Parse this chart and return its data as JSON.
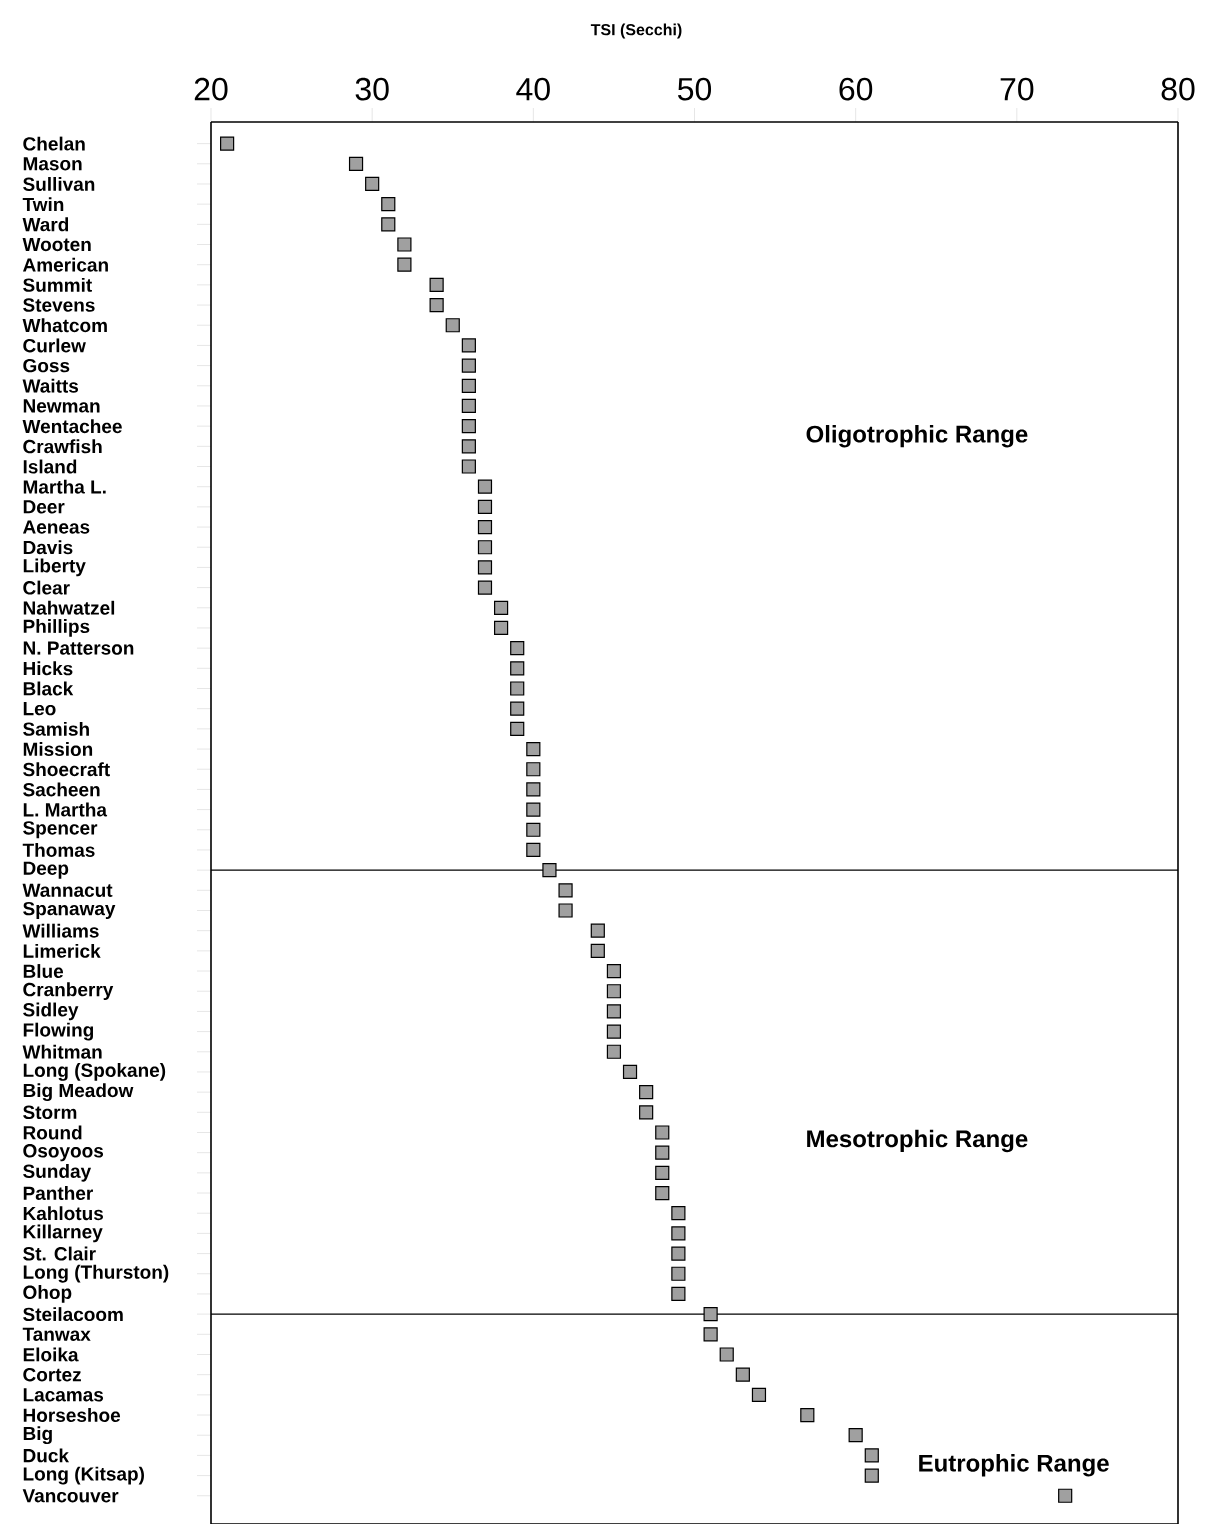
{
  "chart_data": {
    "type": "scatter",
    "xlabel": "TSI (Secchi)",
    "categories": [
      "Chelan",
      "Mason",
      "Sullivan",
      "Twin",
      "Ward",
      "Wooten",
      "American",
      "Summit",
      "Stevens",
      "Whatcom",
      "Curlew",
      "Goss",
      "Waitts",
      "Newman",
      "Wentachee",
      "Crawfish",
      "Island",
      "Martha L.",
      "Deer",
      "Aeneas",
      "Davis",
      "Liberty",
      "Clear",
      "Nahwatzel",
      "Phillips",
      "N. Patterson",
      "Hicks",
      "Black",
      "Leo",
      "Samish",
      "Mission",
      "Shoecraft",
      "Sacheen",
      "L. Martha",
      "Spencer",
      "Thomas",
      "Deep",
      "Wannacut",
      "Spanaway",
      "Williams",
      "Limerick",
      "Blue",
      "Cranberry",
      "Sidley",
      "Flowing",
      "Whitman",
      "Long (Spokane)",
      "Big Meadow",
      "Storm",
      "Round",
      "Osoyoos",
      "Sunday",
      "Panther",
      "Kahlotus",
      "Killarney",
      "St. Clair",
      "Long (Thurston)",
      "Ohop",
      "Steilacoom",
      "Tanwax",
      "Eloika",
      "Cortez",
      "Lacamas",
      "Horseshoe",
      "Big",
      "Duck",
      "Long (Kitsap)",
      "Vancouver"
    ],
    "values": [
      21,
      29,
      30,
      31,
      31,
      32,
      32,
      34,
      34,
      35,
      36,
      36,
      36,
      36,
      36,
      36,
      36,
      37,
      37,
      37,
      37,
      37,
      37,
      38,
      38,
      39,
      39,
      39,
      39,
      39,
      40,
      40,
      40,
      40,
      40,
      40,
      41,
      42,
      42,
      44,
      44,
      45,
      45,
      45,
      45,
      45,
      46,
      47,
      47,
      48,
      48,
      48,
      48,
      49,
      49,
      49,
      49,
      49,
      51,
      51,
      52,
      53,
      54,
      57,
      60,
      61,
      61,
      73
    ],
    "orientation": "horizontal",
    "color": "#a0a0a0",
    "marker": "square",
    "xlim": [
      20,
      80
    ],
    "xticks": [
      20,
      30,
      40,
      50,
      60,
      70,
      80
    ],
    "grid": false,
    "ref_lines": [
      {
        "axis": "y",
        "value": "Deep"
      },
      {
        "axis": "y",
        "value": "Steilacoom"
      }
    ],
    "annotations": [
      "Oligotrophic Range",
      "Mesotrophic Range",
      "Eutrophic Range"
    ]
  }
}
